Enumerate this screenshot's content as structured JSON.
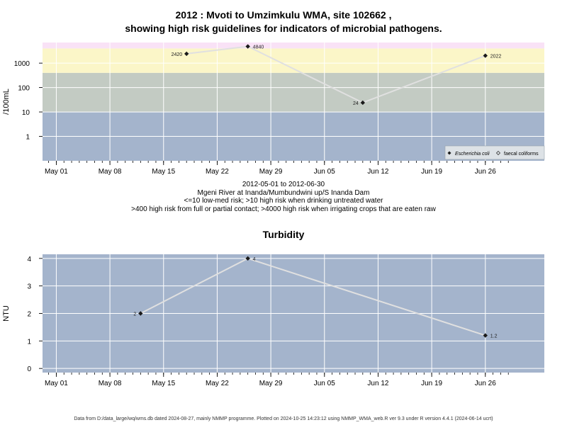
{
  "title_line1": "2012 : Mvoti to Umzimkulu WMA, site 102662 ,",
  "title_line2": "showing high risk guidelines for indicators of microbial pathogens.",
  "subtitle_lines": [
    "2012-05-01 to 2012-06-30",
    "Mgeni River at Inanda/Mumbundwini up/S Inanda Dam",
    "<=10 low-med risk; >10 high risk when drinking untreated water",
    ">400 high risk from full or partial contact; >4000 high risk when irrigating crops that are eaten raw"
  ],
  "footnote": "Data from D:/data_large/wq/wms.db dated 2024-08-27, mainly NMMP programme. Plotted on 2024-10-25 14:23:12 using NMMP_WMA_web.R ver 9.3 under R version 4.4.1 (2024-06-14 ucrt)",
  "colors": {
    "band_low": "#a4b4cc",
    "band_medium": "#c3cbc3",
    "band_high": "#fbf6c8",
    "band_very_high": "#f9e2f6",
    "plot_bg": "#a4b4cc",
    "grid": "#ffffff",
    "line": "#e0e0e0",
    "point": "#1a1a1a"
  },
  "chart_data": [
    {
      "type": "line",
      "title": "",
      "xlabel": "",
      "ylabel": "/100mL",
      "scale": "log10",
      "x_ticks": [
        "May 01",
        "May 08",
        "May 15",
        "May 22",
        "May 29",
        "Jun 05",
        "Jun 12",
        "Jun 19",
        "Jun 26"
      ],
      "y_ticks": [
        "1",
        "10",
        "100",
        "1000"
      ],
      "ylim": [
        0.1,
        7000
      ],
      "bands": [
        {
          "name": "low-med risk",
          "from": 0.1,
          "to": 10
        },
        {
          "name": "high risk drinking",
          "from": 10,
          "to": 400
        },
        {
          "name": "high risk contact",
          "from": 400,
          "to": 4000
        },
        {
          "name": "high risk irrigation",
          "from": 4000,
          "to": 7000
        }
      ],
      "series": [
        {
          "name": "Escherichia coli",
          "points": [
            {
              "date": "2012-05-18",
              "value": 2420,
              "label": "2420"
            },
            {
              "date": "2012-05-26",
              "value": 4840,
              "label": "4840"
            },
            {
              "date": "2012-06-10",
              "value": 24,
              "label": "24"
            },
            {
              "date": "2012-06-26",
              "value": 2022,
              "label": "2022"
            }
          ]
        },
        {
          "name": "faecal coliforms",
          "points": []
        }
      ],
      "legend": "bottom-right",
      "grid": true
    },
    {
      "type": "line",
      "title": "Turbidity",
      "xlabel": "",
      "ylabel": "NTU",
      "scale": "linear",
      "x_ticks": [
        "May 01",
        "May 08",
        "May 15",
        "May 22",
        "May 29",
        "Jun 05",
        "Jun 12",
        "Jun 19",
        "Jun 26"
      ],
      "y_ticks": [
        "0",
        "1",
        "2",
        "3",
        "4"
      ],
      "ylim": [
        -0.15,
        4.15
      ],
      "series": [
        {
          "name": "",
          "points": [
            {
              "date": "2012-05-12",
              "value": 2,
              "label": "2"
            },
            {
              "date": "2012-05-26",
              "value": 4,
              "label": "4"
            },
            {
              "date": "2012-06-26",
              "value": 1.2,
              "label": "1.2"
            }
          ]
        }
      ],
      "grid": true
    }
  ]
}
